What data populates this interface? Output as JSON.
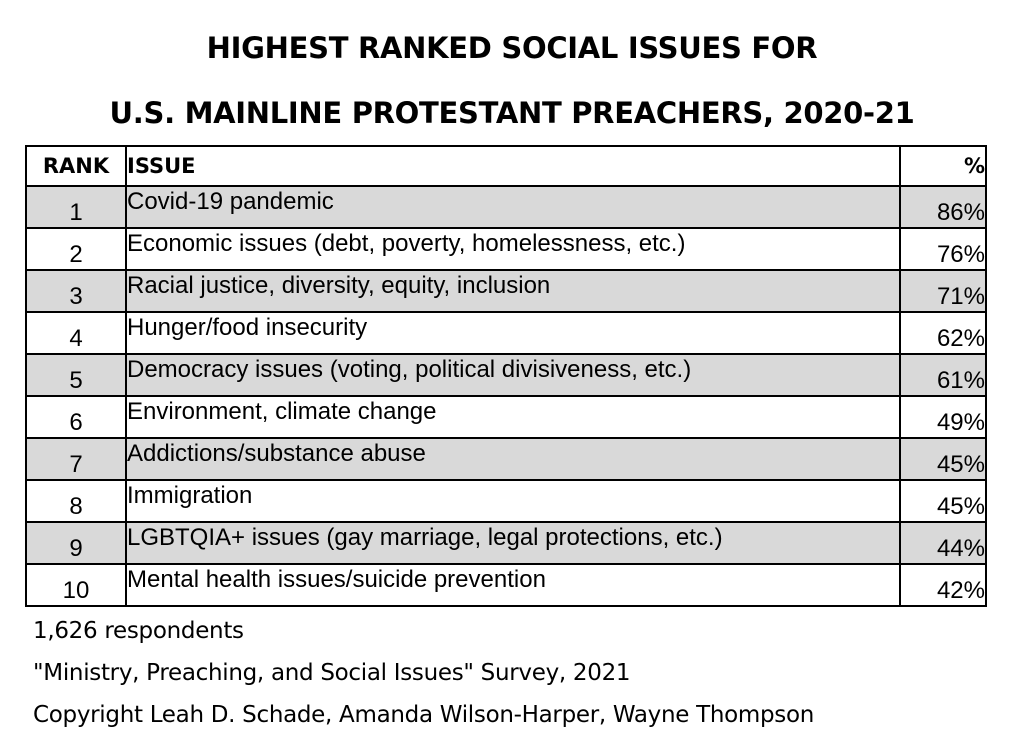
{
  "chart_data": {
    "type": "table",
    "title_line1": "HIGHEST RANKED SOCIAL ISSUES FOR",
    "title_line2": "U.S. MAINLINE PROTESTANT PREACHERS, 2020-21",
    "columns": [
      "RANK",
      "ISSUE",
      "%"
    ],
    "rows": [
      {
        "rank": "1",
        "issue": "Covid-19 pandemic",
        "percent": "86%",
        "value": 86
      },
      {
        "rank": "2",
        "issue": "Economic issues (debt, poverty, homelessness, etc.)",
        "percent": "76%",
        "value": 76
      },
      {
        "rank": "3",
        "issue": "Racial justice, diversity, equity, inclusion",
        "percent": "71%",
        "value": 71
      },
      {
        "rank": "4",
        "issue": "Hunger/food insecurity",
        "percent": "62%",
        "value": 62
      },
      {
        "rank": "5",
        "issue": "Democracy issues (voting, political divisiveness, etc.)",
        "percent": "61%",
        "value": 61
      },
      {
        "rank": "6",
        "issue": "Environment, climate change",
        "percent": "49%",
        "value": 49
      },
      {
        "rank": "7",
        "issue": "Addictions/substance abuse",
        "percent": "45%",
        "value": 45
      },
      {
        "rank": "8",
        "issue": "Immigration",
        "percent": "45%",
        "value": 45
      },
      {
        "rank": "9",
        "issue": "LGBTQIA+ issues (gay marriage, legal protections, etc.)",
        "percent": "44%",
        "value": 44
      },
      {
        "rank": "10",
        "issue": "Mental health issues/suicide prevention",
        "percent": "42%",
        "value": 42
      }
    ],
    "row_shading_color": "#d9d9d9",
    "notes": [
      "1,626 respondents",
      "\"Ministry, Preaching, and Social Issues\" Survey, 2021",
      "Copyright Leah D. Schade, Amanda Wilson-Harper, Wayne Thompson"
    ]
  }
}
